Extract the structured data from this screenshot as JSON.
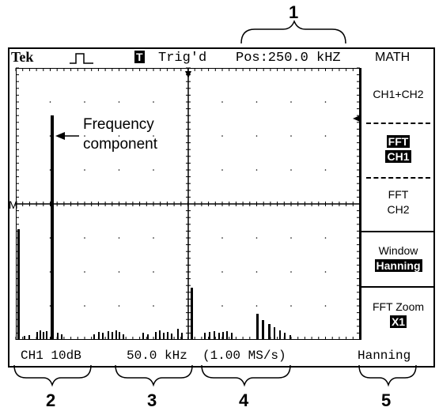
{
  "callouts": {
    "c1": "1",
    "c2": "2",
    "c3": "3",
    "c4": "4",
    "c5": "5"
  },
  "header": {
    "brand": "Tek",
    "trigger_icon": "square-pulse-icon",
    "trig_badge": "T",
    "trig_status": "Trig'd",
    "position": "Pos:250.0 kHZ",
    "menu_title": "MATH"
  },
  "menu": {
    "item1": "CH1+CH2",
    "item2_line1": "FFT",
    "item2_line2": "CH1",
    "item3_line1": "FFT",
    "item3_line2": "CH2",
    "item4_line1": "Window",
    "item4_line2": "Hanning",
    "item5_line1": "FFT Zoom",
    "item5_line2": "X1"
  },
  "graticule": {
    "marker": "M"
  },
  "annotation": {
    "line1": "Frequency",
    "line2": "component"
  },
  "readouts": {
    "scale": "CH1 10dB",
    "span": "50.0 kHz",
    "sample_rate": "(1.00 MS/s)",
    "window": "Hanning"
  }
}
